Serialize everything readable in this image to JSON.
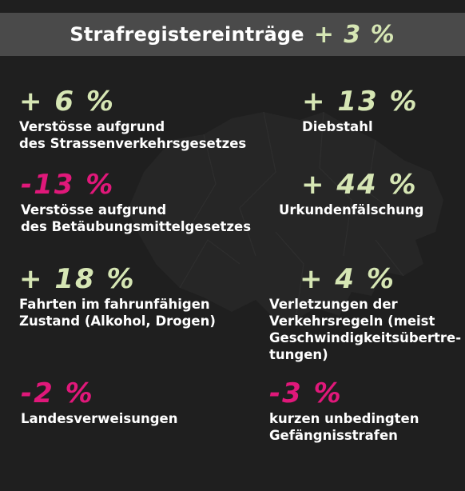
{
  "header": {
    "title": "Strafregistereinträge",
    "change": "+ 3 %"
  },
  "colors": {
    "background": "#1f1f1f",
    "header_bg": "#4a4a4a",
    "increase": "#d6e6b4",
    "decrease": "#e0187a",
    "text": "#ffffff"
  },
  "stats": [
    {
      "change": "+ 6 %",
      "lines": [
        "Verstösse aufgrund",
        "des Strassenverkehrsgesetzes"
      ]
    },
    {
      "change": "+ 13 %",
      "lines": [
        "Diebstahl"
      ]
    },
    {
      "change": "-13 %",
      "lines": [
        "Verstösse aufgrund",
        "des Betäubungsmittelgesetzes"
      ]
    },
    {
      "change": "+ 44 %",
      "lines": [
        "Urkundenfälschung"
      ]
    },
    {
      "change": "+ 18 %",
      "lines": [
        "Fahrten im fahrunfähigen",
        "Zustand (Alkohol, Drogen)"
      ]
    },
    {
      "change": "+ 4 %",
      "lines": [
        "Verletzungen der",
        "Verkehrsregeln (meist",
        "Geschwindigkeitsübertre-",
        "tungen)"
      ]
    },
    {
      "change": "-2 %",
      "lines": [
        "Landesverweisungen"
      ]
    },
    {
      "change": "-3 %",
      "lines": [
        "kurzen unbedingten",
        "Gefängnisstrafen"
      ]
    }
  ]
}
